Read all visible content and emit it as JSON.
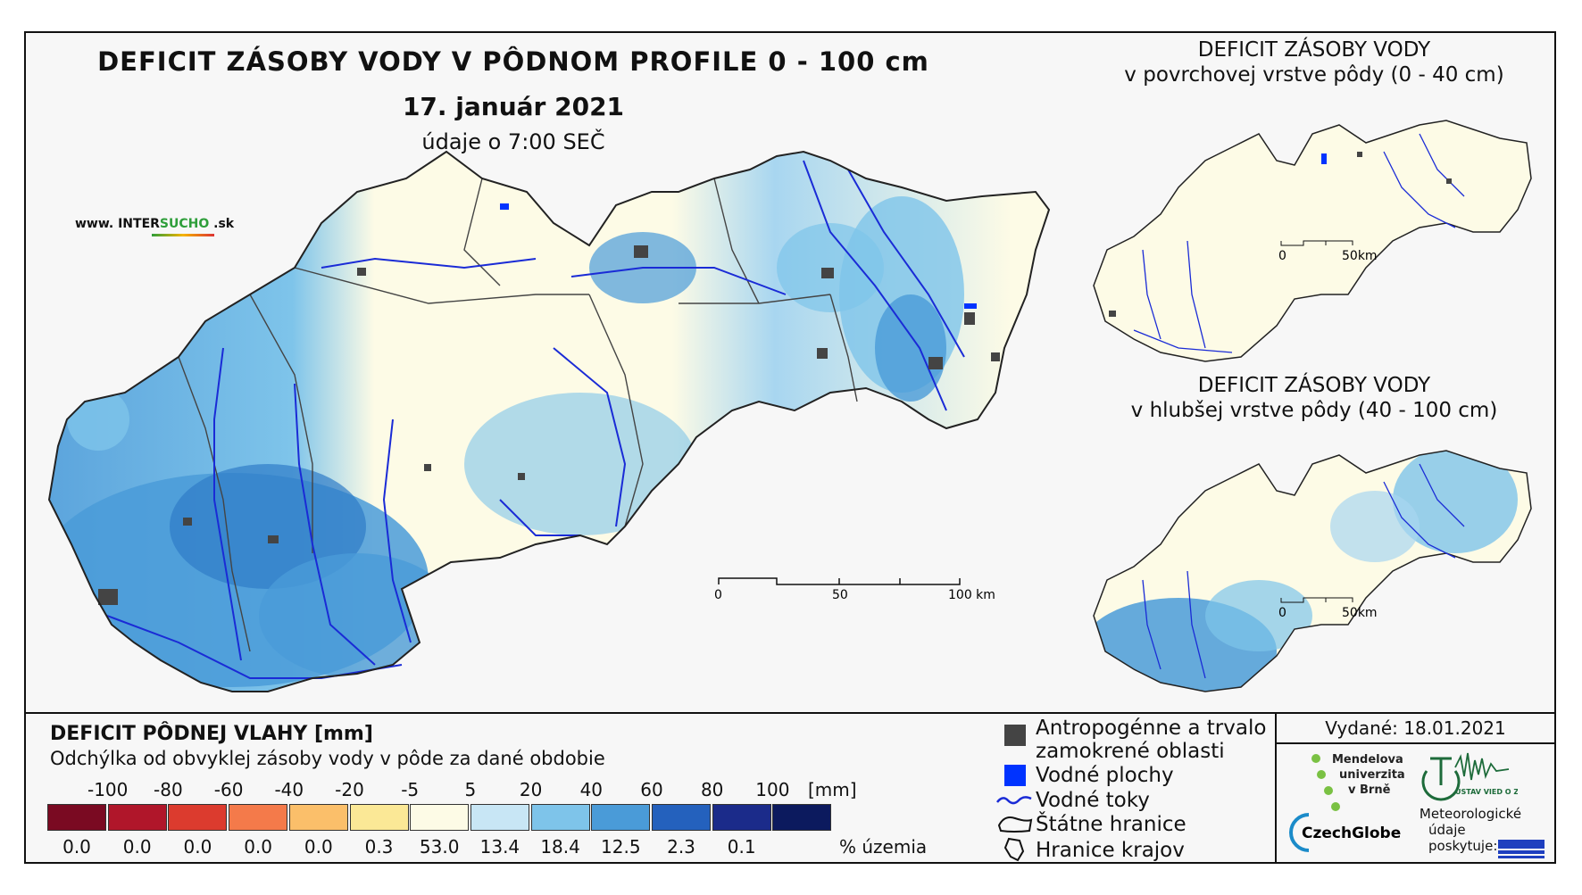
{
  "title": "DEFICIT ZÁSOBY VODY V PÔDNOM PROFILE 0 - 100 cm",
  "date": "17. január 2021",
  "time_note": "údaje o 7:00 SEČ",
  "website": {
    "prefix": "www. INTER",
    "accent": "SUCHO",
    "suffix": " .sk"
  },
  "main_scale": {
    "labels": [
      "0",
      "50",
      "100 km"
    ]
  },
  "inset_top": {
    "title_line1": "DEFICIT ZÁSOBY VODY",
    "title_line2": "v povrchovej vrstve pôdy (0 - 40 cm)",
    "scale_labels": [
      "0",
      "50km"
    ]
  },
  "inset_bottom": {
    "title_line1": "DEFICIT ZÁSOBY VODY",
    "title_line2": "v hlubšej vrstve pôdy (40 - 100 cm)",
    "scale_labels": [
      "0",
      "50km"
    ]
  },
  "legend": {
    "title": "DEFICIT PÔDNEJ VLAHY [mm]",
    "subtitle": "Odchýlka od obvyklej zásoby vody v pôde za dané obdobie",
    "unit": "[mm]",
    "pct_label": "% územia",
    "break_labels": [
      "-100",
      "-80",
      "-60",
      "-40",
      "-20",
      "-5",
      "5",
      "20",
      "40",
      "60",
      "80",
      "100"
    ],
    "classes": [
      {
        "color": "#7a0a22",
        "pct": "0.0"
      },
      {
        "color": "#b0162a",
        "pct": "0.0"
      },
      {
        "color": "#dc3b2e",
        "pct": "0.0"
      },
      {
        "color": "#f47a4a",
        "pct": "0.0"
      },
      {
        "color": "#fbbf6a",
        "pct": "0.0"
      },
      {
        "color": "#fbe896",
        "pct": "0.3"
      },
      {
        "color": "#fdfbe6",
        "pct": "53.0"
      },
      {
        "color": "#c8e6f5",
        "pct": "13.4"
      },
      {
        "color": "#7ec4ea",
        "pct": "18.4"
      },
      {
        "color": "#4a9bd8",
        "pct": "12.5"
      },
      {
        "color": "#2461bd",
        "pct": "2.3"
      },
      {
        "color": "#1b2b8a",
        "pct": "0.1"
      },
      {
        "color": "#0c1a5e",
        "pct": ""
      }
    ],
    "items": {
      "urban_line1": "Antropogénne a trvalo",
      "urban_line2": "zamokrené oblasti",
      "water_bodies": "Vodné plochy",
      "rivers": "Vodné toky",
      "state_border": "Štátne hranice",
      "regions": "Hranice krajov"
    }
  },
  "issued": "Vydané: 18.01.2021",
  "logos": {
    "mendel": [
      "Mendelova",
      "univerzita",
      "v Brně"
    ],
    "czechglobe": "CzechGlobe",
    "ustav": "ÚSTAV VIED O ZEMI",
    "provider": [
      "Meteorologické",
      "údaje",
      "poskytuje:"
    ]
  },
  "colors": {
    "water": "#0033ff",
    "river": "#1a2bd6",
    "urban": "#444444",
    "border": "#222222"
  }
}
